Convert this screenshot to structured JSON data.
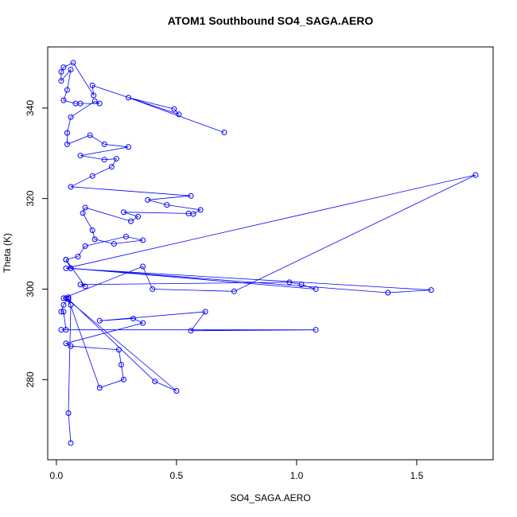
{
  "chart_data": {
    "type": "line",
    "title": "ATOM1 Southbound SO4_SAGA.AERO",
    "x_label": "SO4_SAGA.AERO",
    "y_label": "Theta (K)",
    "color": "#0000ff",
    "marker": "open-circle",
    "x": [
      0.06,
      0.05,
      0.06,
      0.04,
      0.5,
      0.41,
      0.05,
      0.18,
      0.28,
      0.27,
      0.26,
      0.06,
      0.04,
      0.36,
      0.32,
      0.18,
      0.62,
      0.56,
      1.08,
      0.02,
      0.04,
      0.03,
      0.02,
      0.03,
      0.05,
      0.05,
      0.03,
      0.36,
      0.4,
      0.74,
      1.745,
      0.04,
      1.56,
      1.38,
      0.06,
      1.08,
      1.02,
      0.97,
      0.1,
      0.12,
      0.04,
      0.06,
      0.04,
      0.09,
      0.12,
      0.29,
      0.36,
      0.24,
      0.16,
      0.15,
      0.11,
      0.12,
      0.31,
      0.34,
      0.28,
      0.55,
      0.57,
      0.6,
      0.46,
      0.38,
      0.56,
      0.06,
      0.15,
      0.23,
      0.25,
      0.2,
      0.1,
      0.3,
      0.2,
      0.14,
      0.045,
      0.045,
      0.06,
      0.16,
      0.18,
      0.1,
      0.08,
      0.03,
      0.045,
      0.06,
      0.02,
      0.02,
      0.03,
      0.07,
      0.155,
      0.15,
      0.51,
      0.49,
      0.3,
      0.699
    ],
    "values": [
      266,
      272.6,
      296.5,
      298,
      277.5,
      279.6,
      297.8,
      278.2,
      280,
      283.3,
      286.6,
      287.4,
      288,
      292.5,
      293.5,
      293,
      295,
      290.8,
      291,
      291,
      291,
      295,
      295,
      296.5,
      298.2,
      297.8,
      298,
      305,
      300,
      299.5,
      325.2,
      304.6,
      299.8,
      299.2,
      304.6,
      300,
      301,
      301.5,
      301,
      300.6,
      306.5,
      304.6,
      306.5,
      307.2,
      309.5,
      311.6,
      310.8,
      310,
      311,
      313,
      316.8,
      318,
      315,
      316,
      317,
      316.7,
      316.6,
      317.5,
      318.6,
      319.7,
      320.6,
      322.6,
      325,
      327,
      328.8,
      328.6,
      329.5,
      331.4,
      332,
      334,
      332,
      334.5,
      338,
      341.5,
      341,
      341,
      341,
      341.7,
      344,
      348.5,
      346,
      348,
      349,
      350,
      342.8,
      345,
      338.6,
      339.8,
      342.3,
      334.6
    ],
    "xlim": [
      -0.036,
      1.818
    ],
    "ylim": [
      262.3,
      353.5
    ],
    "xticks": [
      {
        "value": 0,
        "label": "0.0"
      },
      {
        "value": 0.5,
        "label": "0.5"
      },
      {
        "value": 1,
        "label": "1.0"
      },
      {
        "value": 1.5,
        "label": "1.5"
      }
    ],
    "yticks": [
      280,
      300,
      320,
      340
    ]
  }
}
